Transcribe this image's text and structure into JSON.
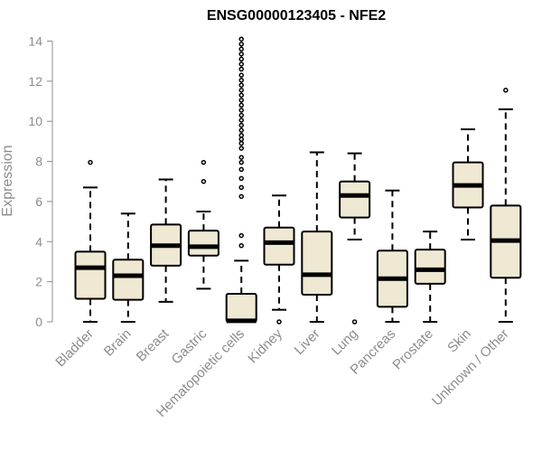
{
  "chart_data": {
    "type": "boxplot",
    "title": "ENSG00000123405 - NFE2",
    "xlabel": "",
    "ylabel": "Expression",
    "ylim": [
      0,
      14.2
    ],
    "yticks": [
      0,
      2,
      4,
      6,
      8,
      10,
      12,
      14
    ],
    "grid": false,
    "legend": "none",
    "colors": {
      "box_fill": "#efe8d2",
      "box_stroke": "#000000",
      "axis": "#8c8c8c",
      "tick_text": "#8c8c8c"
    },
    "categories": [
      "Bladder",
      "Brain",
      "Breast",
      "Gastric",
      "Hematopoietic cells",
      "Kidney",
      "Liver",
      "Lung",
      "Pancreas",
      "Prostate",
      "Skin",
      "Unknown / Other"
    ],
    "boxes": [
      {
        "category": "Bladder",
        "whisker_low": 0.0,
        "q1": 1.15,
        "median": 2.7,
        "q3": 3.5,
        "whisker_high": 6.7,
        "outliers": [
          7.95
        ]
      },
      {
        "category": "Brain",
        "whisker_low": 0.0,
        "q1": 1.1,
        "median": 2.3,
        "q3": 3.1,
        "whisker_high": 5.4,
        "outliers": []
      },
      {
        "category": "Breast",
        "whisker_low": 1.0,
        "q1": 2.8,
        "median": 3.8,
        "q3": 4.85,
        "whisker_high": 7.1,
        "outliers": []
      },
      {
        "category": "Gastric",
        "whisker_low": 1.65,
        "q1": 3.3,
        "median": 3.75,
        "q3": 4.55,
        "whisker_high": 5.5,
        "outliers": [
          7.0,
          7.95
        ]
      },
      {
        "category": "Hematopoietic cells",
        "whisker_low": 0.0,
        "q1": 0.0,
        "median": 0.05,
        "q3": 1.4,
        "whisker_high": 3.05,
        "outliers": [
          3.8,
          4.3,
          6.25,
          6.7,
          7.15,
          7.6,
          7.95,
          8.2,
          8.65,
          8.9,
          9.1,
          9.3,
          9.55,
          9.8,
          10.05,
          10.3,
          10.55,
          10.8,
          11.05,
          11.3,
          11.55,
          11.8,
          12.05,
          12.3,
          12.6,
          12.85,
          13.1,
          13.35,
          13.6,
          13.85,
          14.1
        ]
      },
      {
        "category": "Kidney",
        "whisker_low": 0.6,
        "q1": 2.85,
        "median": 3.95,
        "q3": 4.7,
        "whisker_high": 6.3,
        "outliers": [
          0.0
        ]
      },
      {
        "category": "Liver",
        "whisker_low": 0.0,
        "q1": 1.35,
        "median": 2.35,
        "q3": 4.5,
        "whisker_high": 8.45,
        "outliers": []
      },
      {
        "category": "Lung",
        "whisker_low": 4.1,
        "q1": 5.2,
        "median": 6.3,
        "q3": 7.0,
        "whisker_high": 8.4,
        "outliers": [
          0.0
        ]
      },
      {
        "category": "Pancreas",
        "whisker_low": 0.0,
        "q1": 0.75,
        "median": 2.15,
        "q3": 3.55,
        "whisker_high": 6.55,
        "outliers": []
      },
      {
        "category": "Prostate",
        "whisker_low": 0.0,
        "q1": 1.9,
        "median": 2.6,
        "q3": 3.6,
        "whisker_high": 4.5,
        "outliers": []
      },
      {
        "category": "Skin",
        "whisker_low": 4.1,
        "q1": 5.7,
        "median": 6.8,
        "q3": 7.95,
        "whisker_high": 9.6,
        "outliers": []
      },
      {
        "category": "Unknown / Other",
        "whisker_low": 0.0,
        "q1": 2.2,
        "median": 4.05,
        "q3": 5.8,
        "whisker_high": 10.6,
        "outliers": [
          11.55
        ]
      }
    ]
  }
}
